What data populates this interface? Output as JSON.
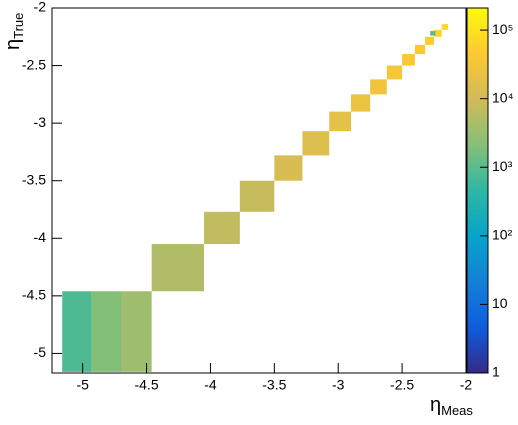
{
  "chart_data": {
    "type": "heatmap",
    "xlabel": "η",
    "xlabel_sub": "Meas",
    "ylabel": "η",
    "ylabel_sub": "True",
    "xlim": [
      -5.24,
      -2
    ],
    "xticks": [
      -5,
      -4.5,
      -4,
      -3.5,
      -3,
      -2.5,
      -2
    ],
    "ylim": [
      -5.17,
      -2
    ],
    "yticks": [
      -5,
      -4.5,
      -4,
      -3.5,
      -3,
      -2.5,
      -2
    ],
    "zlim": [
      1,
      210000
    ],
    "zlog": true,
    "zticks": [
      1,
      10,
      {
        "value": 100,
        "label": "10²"
      },
      {
        "value": 1000,
        "label": "10³"
      },
      {
        "value": 10000,
        "label": "10⁴"
      },
      {
        "value": 100000,
        "label": "10⁵"
      }
    ],
    "colormap": [
      "#352a87",
      "#0f5cdd",
      "#1481d6",
      "#06a4ca",
      "#2eb7a4",
      "#87bf77",
      "#d1bb59",
      "#fec832",
      "#f9fb0e"
    ],
    "cells": [
      {
        "x0": -5.16,
        "x1": -4.93,
        "y0": -5.16,
        "y1": -4.46,
        "value": 800
      },
      {
        "x0": -4.93,
        "x1": -4.7,
        "y0": -5.16,
        "y1": -4.46,
        "value": 2000
      },
      {
        "x0": -4.7,
        "x1": -4.46,
        "y0": -5.16,
        "y1": -4.46,
        "value": 3500
      },
      {
        "x0": -4.46,
        "x1": -4.05,
        "y0": -4.46,
        "y1": -4.05,
        "value": 5000
      },
      {
        "x0": -4.05,
        "x1": -3.77,
        "y0": -4.05,
        "y1": -3.77,
        "value": 7000
      },
      {
        "x0": -3.77,
        "x1": -3.5,
        "y0": -3.77,
        "y1": -3.5,
        "value": 8000
      },
      {
        "x0": -3.5,
        "x1": -3.28,
        "y0": -3.5,
        "y1": -3.28,
        "value": 12000
      },
      {
        "x0": -3.28,
        "x1": -3.07,
        "y0": -3.28,
        "y1": -3.07,
        "value": 15000
      },
      {
        "x0": -3.07,
        "x1": -2.9,
        "y0": -3.07,
        "y1": -2.9,
        "value": 20000
      },
      {
        "x0": -2.9,
        "x1": -2.75,
        "y0": -2.9,
        "y1": -2.75,
        "value": 25000
      },
      {
        "x0": -2.75,
        "x1": -2.62,
        "y0": -2.75,
        "y1": -2.62,
        "value": 30000
      },
      {
        "x0": -2.62,
        "x1": -2.5,
        "y0": -2.62,
        "y1": -2.5,
        "value": 35000
      },
      {
        "x0": -2.5,
        "x1": -2.4,
        "y0": -2.5,
        "y1": -2.4,
        "value": 40000
      },
      {
        "x0": -2.4,
        "x1": -2.32,
        "y0": -2.4,
        "y1": -2.32,
        "value": 45000
      },
      {
        "x0": -2.32,
        "x1": -2.25,
        "y0": -2.32,
        "y1": -2.25,
        "value": 50000
      },
      {
        "x0": -2.25,
        "x1": -2.19,
        "y0": -2.25,
        "y1": -2.19,
        "value": 60000
      },
      {
        "x0": -2.19,
        "x1": -2.14,
        "y0": -2.19,
        "y1": -2.14,
        "value": 80000
      },
      {
        "x0": -2.28,
        "x1": -2.24,
        "y0": -2.24,
        "y1": -2.2,
        "value": 1000
      }
    ]
  }
}
